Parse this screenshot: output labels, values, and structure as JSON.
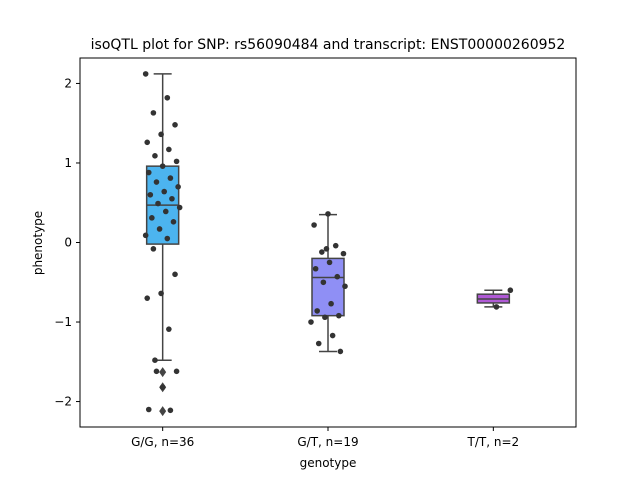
{
  "chart_data": {
    "type": "box",
    "title": "isoQTL plot for SNP: rs56090484 and transcript: ENST00000260952",
    "xlabel": "genotype",
    "ylabel": "phenotype",
    "categories": [
      "G/G, n=36",
      "G/T, n=19",
      "T/T, n=2"
    ],
    "ylim": [
      -2.32,
      2.32
    ],
    "yticks": [
      -2,
      -1,
      0,
      1,
      2
    ],
    "grid": false,
    "box_color_names": [
      "light-blue",
      "lavender",
      "purple"
    ],
    "colors": {
      "box_fills": [
        "#4cb4ef",
        "#8f8ff5",
        "#b05ad6"
      ],
      "box_edge": "#444444",
      "point": "#333333"
    },
    "boxes": [
      {
        "q1": -0.02,
        "median": 0.47,
        "q3": 0.96,
        "whisker_low": -1.48,
        "whisker_high": 2.12,
        "fliers": [
          -1.63,
          -1.82,
          -2.12
        ]
      },
      {
        "q1": -0.92,
        "median": -0.44,
        "q3": -0.2,
        "whisker_low": -1.37,
        "whisker_high": 0.35,
        "fliers": []
      },
      {
        "q1": -0.76,
        "median": -0.71,
        "q3": -0.65,
        "whisker_low": -0.81,
        "whisker_high": -0.6,
        "fliers": []
      }
    ],
    "points": [
      [
        2.12,
        1.82,
        1.63,
        1.48,
        1.36,
        1.26,
        1.17,
        1.09,
        1.02,
        0.96,
        0.88,
        0.81,
        0.76,
        0.7,
        0.64,
        0.6,
        0.55,
        0.49,
        0.44,
        0.39,
        0.31,
        0.26,
        0.17,
        0.09,
        0.05,
        -0.08,
        -0.4,
        -0.64,
        -0.7,
        -1.09,
        -1.48,
        -1.62,
        -1.82,
        -2.1,
        -2.11,
        -1.62
      ],
      [
        0.36,
        0.22,
        -0.04,
        -0.12,
        -0.14,
        -0.25,
        -0.33,
        -0.43,
        -0.5,
        -0.55,
        -0.77,
        -0.86,
        -0.92,
        -0.94,
        -1.0,
        -1.17,
        -1.27,
        -1.37,
        -0.08
      ],
      [
        -0.6,
        -0.81
      ]
    ]
  }
}
